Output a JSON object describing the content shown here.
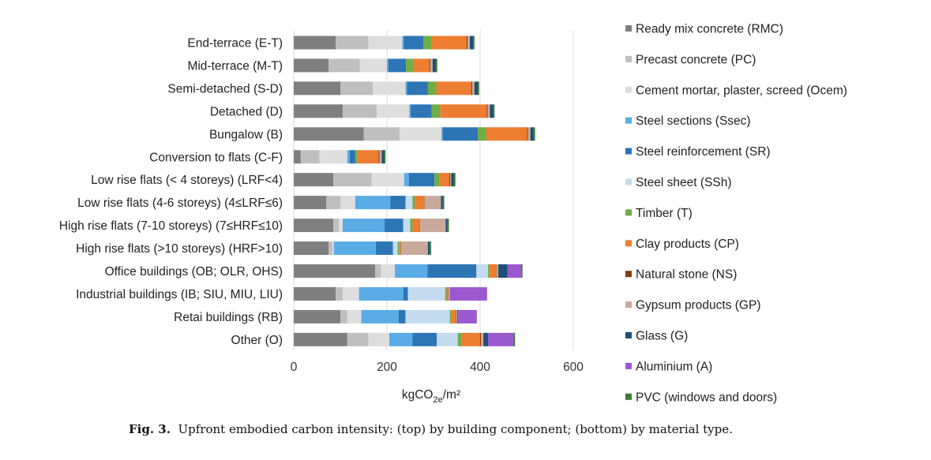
{
  "caption": {
    "label": "Fig. 3.",
    "text": "Upfront embodied carbon intensity: (top) by building component; (bottom) by material type."
  },
  "chart_data": {
    "type": "bar",
    "orientation": "horizontal",
    "stacked": true,
    "title": "",
    "xlabel_main": "kgCO",
    "xlabel_sub": "2e",
    "xlabel_tail": "/m²",
    "xlim": [
      0,
      600
    ],
    "xticks": [
      "0",
      "200",
      "400",
      "600"
    ],
    "grid": true,
    "legend_position": "right",
    "categories": [
      "End-terrace (E-T)",
      "Mid-terrace (M-T)",
      "Semi-detached (S-D)",
      "Detached (D)",
      "Bungalow (B)",
      "Conversion to flats (C-F)",
      "Low rise flats (< 4 storeys) (LRF<4)",
      "Low rise flats (4-6 storeys) (4≤LRF≤6)",
      "High rise flats (7-10 storeys) (7≤HRF≤10)",
      "High rise flats (>10 storeys) (HRF>10)",
      "Office buildings (OB; OLR, OHS)",
      "Industrial buildings (IB; SIU, MIU, LIU)",
      "Retai buildings (RB)",
      "Other (O)"
    ],
    "series": [
      {
        "name": "Ready mix concrete (RMC)",
        "color": "#7f7f7f",
        "values": [
          90,
          75,
          100,
          105,
          150,
          15,
          85,
          70,
          85,
          75,
          175,
          90,
          100,
          115
        ]
      },
      {
        "name": "Precast concrete (PC)",
        "color": "#bfbfbf",
        "values": [
          70,
          67,
          70,
          73,
          77,
          40,
          82,
          30,
          12,
          8,
          12,
          15,
          15,
          45
        ]
      },
      {
        "name": "Cement mortar, plaster, screed (Ocem)",
        "color": "#dedede",
        "values": [
          73,
          58,
          70,
          70,
          90,
          60,
          70,
          32,
          8,
          3,
          30,
          35,
          30,
          45
        ]
      },
      {
        "name": "Steel sections (Ssec)",
        "color": "#5aace6",
        "values": [
          3,
          3,
          3,
          3,
          3,
          5,
          10,
          75,
          90,
          90,
          70,
          95,
          80,
          50
        ]
      },
      {
        "name": "Steel reinforcement (SR)",
        "color": "#2e75b6",
        "values": [
          42,
          38,
          45,
          45,
          75,
          12,
          55,
          33,
          40,
          37,
          105,
          10,
          15,
          52
        ]
      },
      {
        "name": "Steel sheet (SSh)",
        "color": "#c5dcf0",
        "values": [
          0,
          0,
          0,
          0,
          0,
          0,
          0,
          15,
          15,
          10,
          25,
          80,
          95,
          45
        ]
      },
      {
        "name": "Timber (T)",
        "color": "#70ad47",
        "values": [
          18,
          15,
          18,
          18,
          18,
          5,
          10,
          5,
          5,
          3,
          3,
          3,
          3,
          8
        ]
      },
      {
        "name": "Clay products (CP)",
        "color": "#ed7d31",
        "values": [
          75,
          35,
          75,
          100,
          88,
          45,
          22,
          20,
          15,
          3,
          15,
          3,
          10,
          40
        ]
      },
      {
        "name": "Natural stone (NS)",
        "color": "#843c0c",
        "values": [
          2,
          2,
          2,
          2,
          2,
          2,
          2,
          1,
          1,
          1,
          1,
          1,
          1,
          2
        ]
      },
      {
        "name": "Gypsum products (GP)",
        "color": "#c9a99b",
        "values": [
          5,
          5,
          5,
          5,
          5,
          5,
          2,
          35,
          55,
          58,
          3,
          3,
          2,
          5
        ]
      },
      {
        "name": "Glass (G)",
        "color": "#1f4e79",
        "values": [
          7,
          7,
          7,
          7,
          7,
          5,
          6,
          4,
          4,
          4,
          20,
          0,
          2,
          10
        ]
      },
      {
        "name": "Aluminium (A)",
        "color": "#9b59d0",
        "values": [
          0,
          0,
          0,
          0,
          0,
          0,
          0,
          0,
          0,
          0,
          30,
          80,
          40,
          55
        ]
      },
      {
        "name": "PVC (windows and doors)",
        "color": "#3a7d32",
        "values": [
          3,
          3,
          3,
          3,
          3,
          3,
          3,
          3,
          3,
          3,
          2,
          0,
          0,
          3
        ]
      }
    ]
  }
}
